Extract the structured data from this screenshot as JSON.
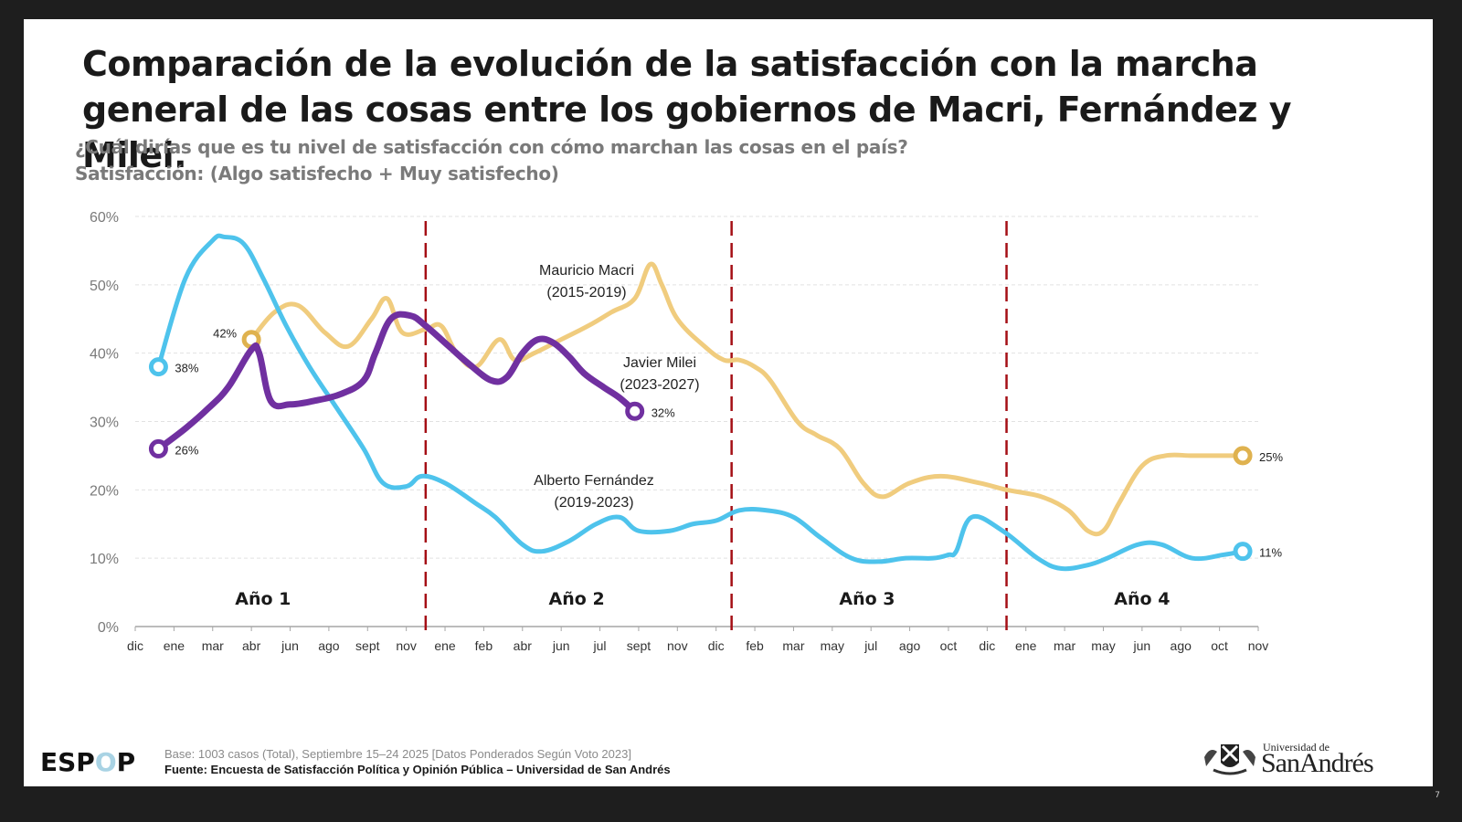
{
  "slide": {
    "title": "Comparación de la evolución de la satisfacción con la marcha general de las cosas entre los gobiernos de Macri, Fernández y Milei.",
    "subtitle_line1": "¿Cuál dirías que es tu nivel de satisfacción con cómo marchan las cosas en el país?",
    "subtitle_line2": "Satisfacción: (Algo satisfecho + Muy satisfecho)",
    "footer": {
      "logo_prefix": "ESP",
      "logo_o": "O",
      "logo_suffix": "P",
      "base": "Base: 1003 casos (Total), Septiembre 15–24 2025 [Datos Ponderados Según Voto 2023]",
      "source": "Fuente: Encuesta de Satisfacción Política y Opinión Pública – Universidad de San Andrés"
    },
    "university": {
      "small": "Universidad de",
      "big": "SanAndrés"
    },
    "page_number": "7"
  },
  "chart_data": {
    "type": "line",
    "title": "",
    "xlabel": "",
    "ylabel": "",
    "ylim": [
      0,
      60
    ],
    "yticks": [
      0,
      10,
      20,
      30,
      40,
      50,
      60
    ],
    "ytick_labels": [
      "0%",
      "10%",
      "20%",
      "30%",
      "40%",
      "50%",
      "60%"
    ],
    "grid": true,
    "x_tick_labels": [
      "dic",
      "ene",
      "mar",
      "abr",
      "jun",
      "ago",
      "sept",
      "nov",
      "ene",
      "feb",
      "abr",
      "jun",
      "jul",
      "sept",
      "nov",
      "dic",
      "feb",
      "mar",
      "may",
      "jul",
      "ago",
      "oct",
      "dic",
      "ene",
      "mar",
      "may",
      "jun",
      "ago",
      "oct",
      "nov"
    ],
    "year_dividers": [
      7.5,
      15.4,
      22.5
    ],
    "year_labels": [
      {
        "text": "Año 1",
        "x": 3.3
      },
      {
        "text": "Año 2",
        "x": 11.4
      },
      {
        "text": "Año 3",
        "x": 18.9
      },
      {
        "text": "Año 4",
        "x": 26.0
      }
    ],
    "series": [
      {
        "name": "Mauricio Macri (2015-2019)",
        "label_line1": "Mauricio Macri",
        "label_line2": "(2015-2019)",
        "color": "#f0cc7e",
        "marker_color": "#dfb24f",
        "x": [
          3.0,
          3.6,
          4.2,
          4.9,
          5.5,
          6.1,
          6.5,
          6.9,
          7.5,
          7.9,
          8.3,
          8.8,
          9.4,
          9.8,
          10.3,
          11.0,
          11.7,
          12.3,
          12.9,
          13.3,
          13.6,
          14.0,
          14.7,
          15.2,
          15.6,
          16.0,
          16.4,
          17.1,
          17.6,
          18.2,
          18.8,
          19.3,
          20.0,
          20.8,
          21.8,
          22.5,
          23.4,
          24.1,
          24.6,
          25.0,
          25.4,
          26.0,
          26.6,
          27.3,
          28.1,
          28.6
        ],
        "values": [
          42,
          46,
          47,
          43,
          41,
          45,
          48,
          43,
          43.5,
          44,
          40,
          38,
          42,
          39,
          40,
          42,
          44,
          46,
          48,
          53,
          50,
          45,
          41,
          39,
          39,
          38,
          36,
          30,
          28,
          26,
          21,
          19,
          21,
          22,
          21,
          20,
          19,
          17,
          14,
          14,
          18,
          23.5,
          25,
          25,
          25,
          25
        ],
        "start_label": "42%",
        "end_label": "25%"
      },
      {
        "name": "Alberto Fernández (2019-2023)",
        "label_line1": "Alberto Fernández",
        "label_line2": "(2019-2023)",
        "color": "#4ec3ec",
        "marker_color": "#4ec3ec",
        "x": [
          0.6,
          1.3,
          2.0,
          2.3,
          2.8,
          3.3,
          3.9,
          4.5,
          5.2,
          5.9,
          6.4,
          7.0,
          7.4,
          8.0,
          8.8,
          9.3,
          10.0,
          10.5,
          11.2,
          11.9,
          12.5,
          13.0,
          13.8,
          14.4,
          15.0,
          15.6,
          16.3,
          17.0,
          17.7,
          18.5,
          19.2,
          19.9,
          20.6,
          21.0,
          21.2,
          21.6,
          22.4,
          23.3,
          23.9,
          24.6,
          25.1,
          25.9,
          26.5,
          27.3,
          28.1,
          28.6
        ],
        "values": [
          38,
          51,
          56.5,
          57,
          56,
          51,
          44,
          38,
          32,
          26,
          21,
          20.5,
          22,
          21,
          18,
          16,
          12,
          11,
          12.5,
          15,
          16,
          14,
          14,
          15,
          15.5,
          17,
          17,
          16,
          13,
          10,
          9.5,
          10,
          10,
          10.5,
          11,
          16,
          14,
          10,
          8.5,
          9,
          10,
          12,
          12,
          10,
          10.5,
          11
        ],
        "start_label": "38%",
        "end_label": "11%"
      },
      {
        "name": "Javier Milei (2023-2027)",
        "label_line1": "Javier Milei",
        "label_line2": "(2023-2027)",
        "color": "#7030a0",
        "marker_color": "#7030a0",
        "x": [
          0.6,
          1.3,
          1.9,
          2.4,
          3.0,
          3.2,
          3.5,
          4.0,
          4.6,
          5.3,
          5.9,
          6.2,
          6.6,
          7.1,
          7.5,
          8.1,
          8.6,
          9.2,
          9.6,
          10.0,
          10.4,
          10.8,
          11.2,
          11.6,
          12.1,
          12.5,
          12.9
        ],
        "values": [
          26,
          29,
          32,
          35,
          40.5,
          40,
          33,
          32.5,
          33,
          34,
          36,
          40,
          45,
          45.5,
          44,
          41,
          38.5,
          36,
          36.5,
          40,
          42,
          41.5,
          39.5,
          37,
          35,
          33.5,
          31.5
        ],
        "start_label": "26%",
        "end_label": "32%"
      }
    ]
  }
}
